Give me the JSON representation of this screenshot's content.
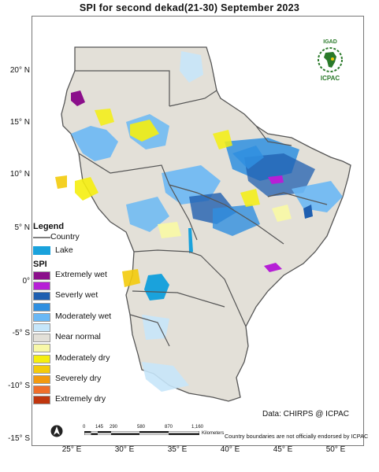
{
  "title": "SPI   for   second dekad(21-30)  September  2023",
  "y_ticks": [
    "20° N",
    "15° N",
    "10° N",
    "5° N",
    "0°",
    "-5° S",
    "-10° S",
    "-15° S"
  ],
  "x_ticks": [
    "25° E",
    "30° E",
    "35° E",
    "40° E",
    "45° E",
    "50° E"
  ],
  "legend": {
    "title": "Legend",
    "country_label": "Country",
    "lake_label": "Lake",
    "spi_title": "SPI",
    "classes": [
      {
        "label": "Extremely wet",
        "color": "#8b0f8b"
      },
      {
        "label": "",
        "color": "#b61fd6"
      },
      {
        "label": "Severly wet",
        "color": "#1f5fb0"
      },
      {
        "label": "",
        "color": "#2f8fe0"
      },
      {
        "label": "Moderately wet",
        "color": "#6ab8f5"
      },
      {
        "label": "",
        "color": "#c6e6fa"
      },
      {
        "label": "Near normal",
        "color": "#e3e0d8"
      },
      {
        "label": "",
        "color": "#f8f8a8"
      },
      {
        "label": "Moderately dry",
        "color": "#f5ee10"
      },
      {
        "label": "",
        "color": "#f3cb0b"
      },
      {
        "label": "Severely dry",
        "color": "#f29a10"
      },
      {
        "label": "",
        "color": "#ef6e2a"
      },
      {
        "label": "Extremely dry",
        "color": "#c0360e"
      }
    ],
    "lake_color": "#1aa2dc",
    "country_color": "#555555"
  },
  "logo": {
    "top_text": "IGAD",
    "bottom_text": "ICPAC"
  },
  "credit": "Data: CHIRPS @ ICPAC",
  "disclaimer": "Country boundaries are not officially endorsed by ICPAC",
  "scale_bar": {
    "labels": [
      "0",
      "145",
      "290",
      "580",
      "870",
      "1,160"
    ],
    "unit": "Kilometers"
  },
  "north_arrow": "north-arrow-icon"
}
